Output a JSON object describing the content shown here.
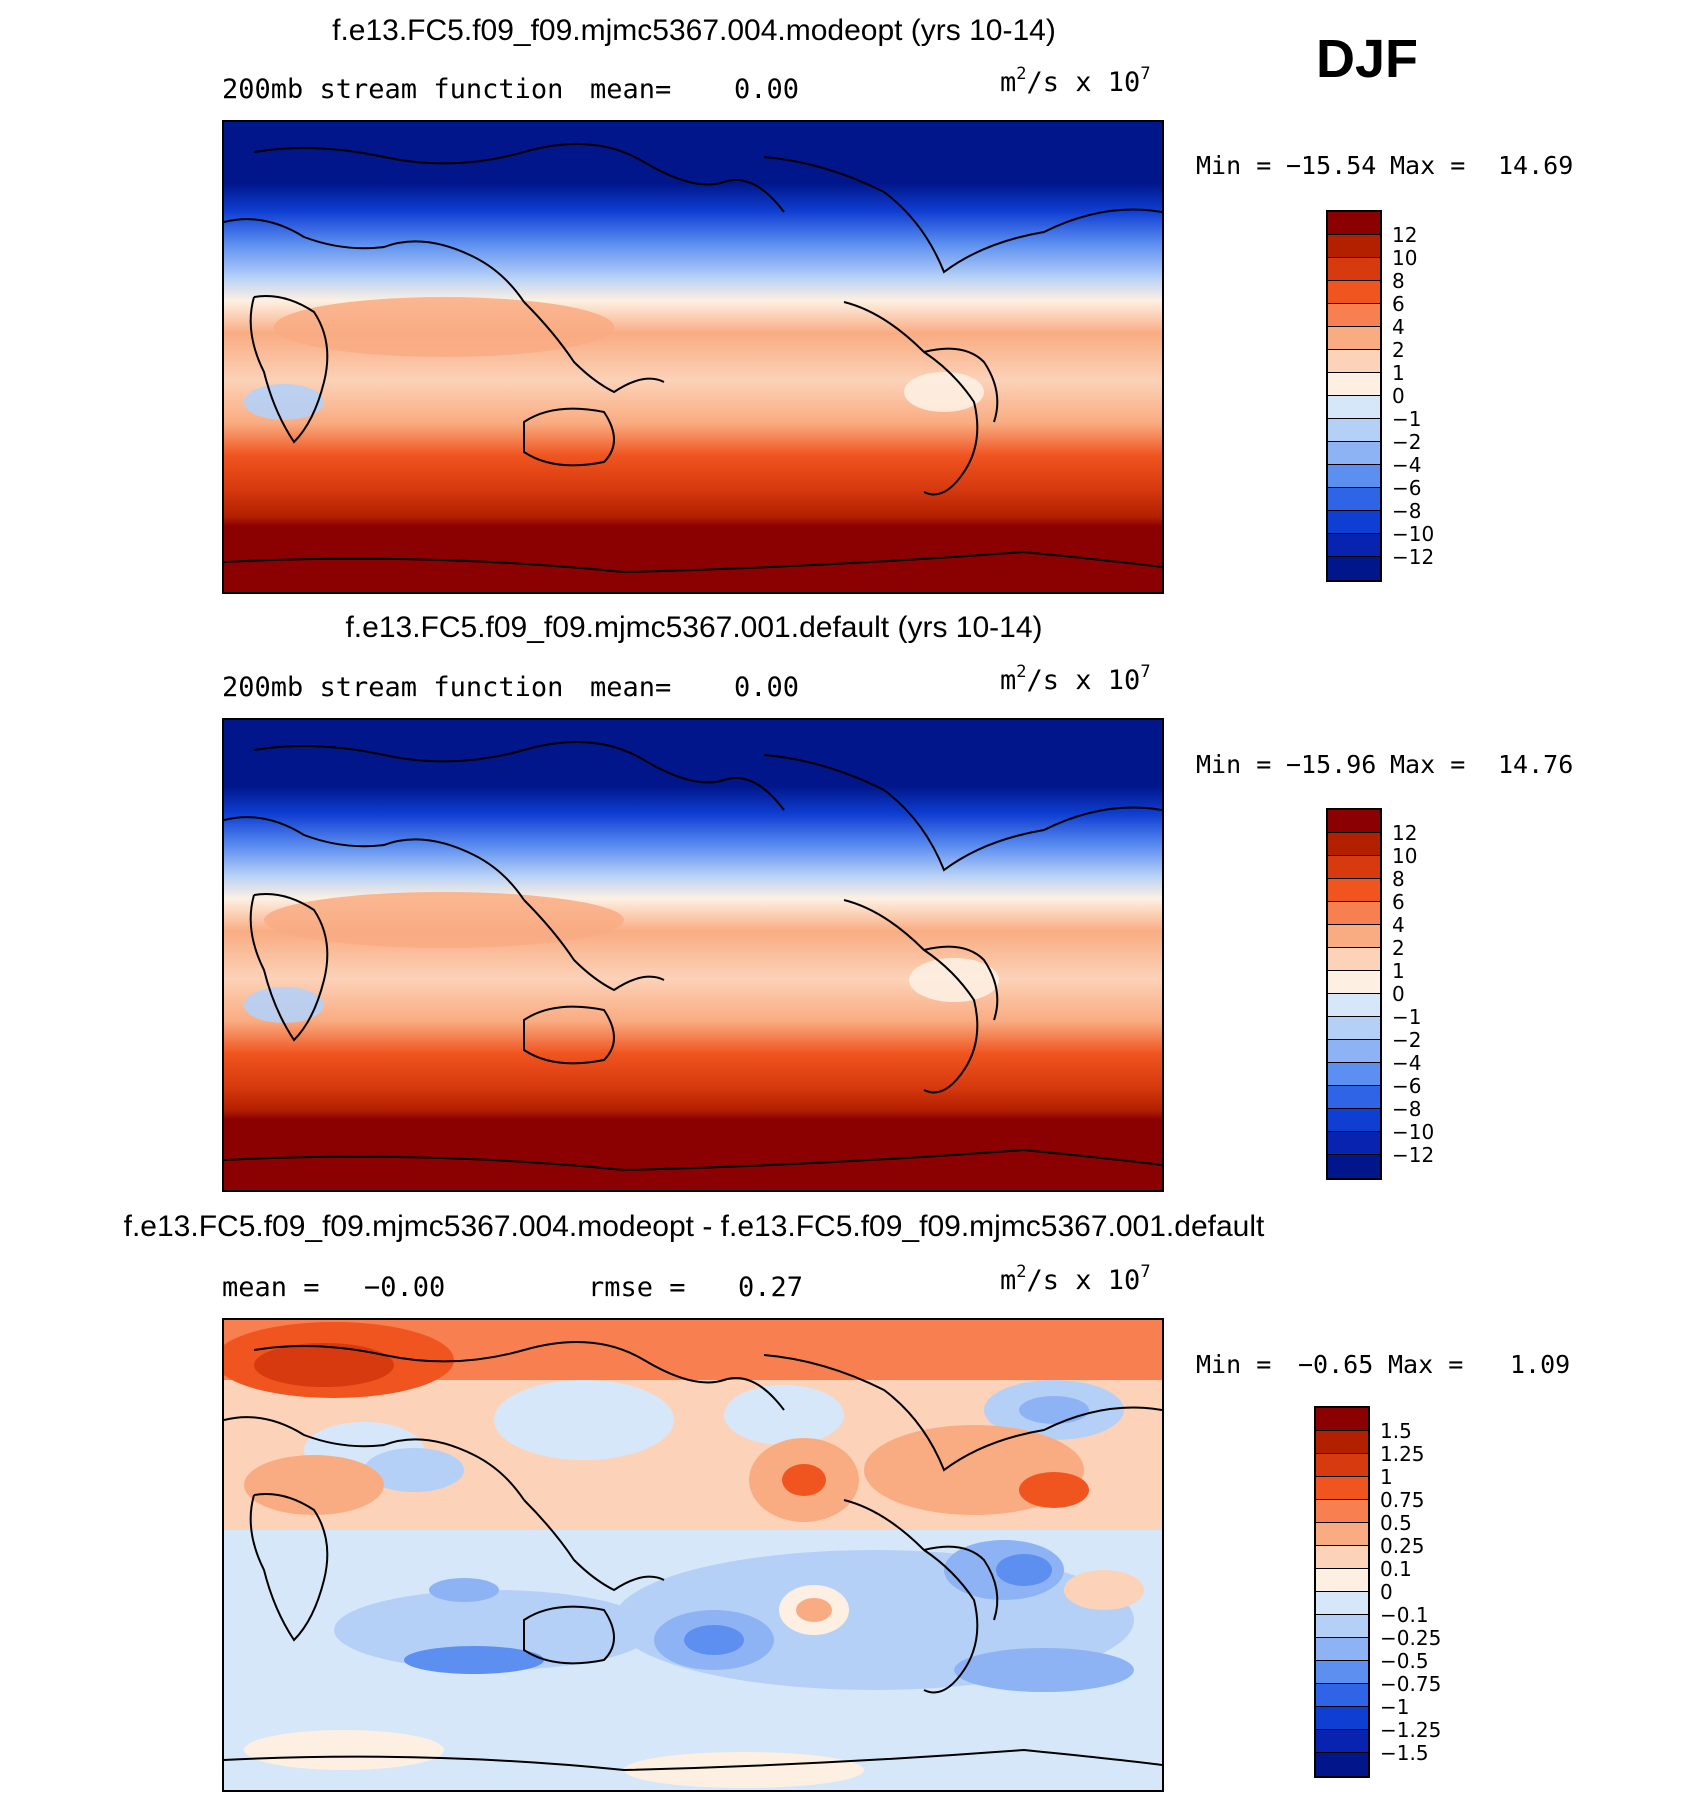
{
  "season": "DJF",
  "panels": [
    {
      "title": "f.e13.FC5.f09_f09.mjmc5367.004.modeopt (yrs 10-14)",
      "field_label": "200mb stream function",
      "mean_label": "mean=",
      "mean_value": "0.00",
      "units_base": "m",
      "units_exp1": "2",
      "units_mid": "/s x 10",
      "units_exp2": "7",
      "min_label": "Min =",
      "min_value": "−15.54",
      "max_label": "Max =",
      "max_value": "14.69",
      "colorbar_labels": [
        "12",
        "10",
        "8",
        "6",
        "4",
        "2",
        "1",
        "0",
        "−1",
        "−2",
        "−4",
        "−6",
        "−8",
        "−10",
        "−12"
      ],
      "colorbar_colors": [
        "#8b0000",
        "#b32000",
        "#d73a0e",
        "#f0541f",
        "#f87f4f",
        "#f9ac82",
        "#fcd2b8",
        "#fdf0e2",
        "#d6e7fa",
        "#b5d0f7",
        "#8db3f4",
        "#5d8ff0",
        "#2f64e6",
        "#0f3ed2",
        "#0823b0",
        "#00168a"
      ]
    },
    {
      "title": "f.e13.FC5.f09_f09.mjmc5367.001.default (yrs 10-14)",
      "field_label": "200mb stream function",
      "mean_label": "mean=",
      "mean_value": "0.00",
      "units_base": "m",
      "units_exp1": "2",
      "units_mid": "/s x 10",
      "units_exp2": "7",
      "min_label": "Min =",
      "min_value": "−15.96",
      "max_label": "Max =",
      "max_value": "14.76",
      "colorbar_labels": [
        "12",
        "10",
        "8",
        "6",
        "4",
        "2",
        "1",
        "0",
        "−1",
        "−2",
        "−4",
        "−6",
        "−8",
        "−10",
        "−12"
      ],
      "colorbar_colors": [
        "#8b0000",
        "#b32000",
        "#d73a0e",
        "#f0541f",
        "#f87f4f",
        "#f9ac82",
        "#fcd2b8",
        "#fdf0e2",
        "#d6e7fa",
        "#b5d0f7",
        "#8db3f4",
        "#5d8ff0",
        "#2f64e6",
        "#0f3ed2",
        "#0823b0",
        "#00168a"
      ]
    },
    {
      "title": "f.e13.FC5.f09_f09.mjmc5367.004.modeopt - f.e13.FC5.f09_f09.mjmc5367.001.default",
      "mean_label": "mean =",
      "mean_value": "−0.00",
      "rmse_label": "rmse =",
      "rmse_value": "0.27",
      "units_base": "m",
      "units_exp1": "2",
      "units_mid": "/s x 10",
      "units_exp2": "7",
      "min_label": "Min =",
      "min_value": "−0.65",
      "max_label": "Max =",
      "max_value": "1.09",
      "colorbar_labels": [
        "1.5",
        "1.25",
        "1",
        "0.75",
        "0.5",
        "0.25",
        "0.1",
        "0",
        "−0.1",
        "−0.25",
        "−0.5",
        "−0.75",
        "−1",
        "−1.25",
        "−1.5"
      ],
      "colorbar_colors": [
        "#8b0000",
        "#b32000",
        "#d73a0e",
        "#f0541f",
        "#f87f4f",
        "#f9ac82",
        "#fcd2b8",
        "#fdf0e2",
        "#d6e7fa",
        "#b5d0f7",
        "#8db3f4",
        "#5d8ff0",
        "#2f64e6",
        "#0f3ed2",
        "#0823b0",
        "#00168a"
      ]
    }
  ]
}
